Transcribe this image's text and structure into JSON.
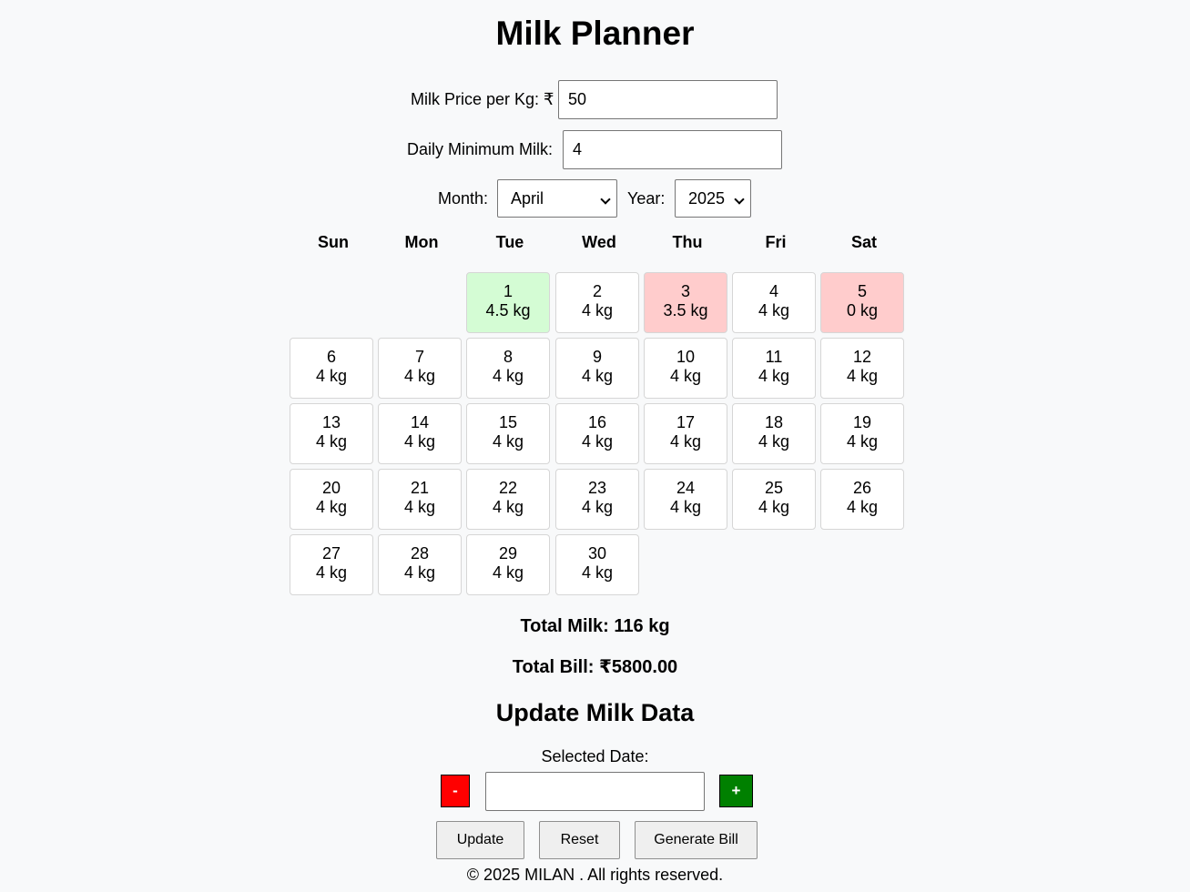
{
  "title": "Milk Planner",
  "price": {
    "label": "Milk Price per Kg: ₹",
    "value": "50"
  },
  "daily_min": {
    "label": "Daily Minimum Milk:",
    "value": "4"
  },
  "month": {
    "label": "Month:",
    "selected": "April"
  },
  "year": {
    "label": "Year:",
    "selected": "2025"
  },
  "calendar": {
    "weekdays": [
      "Sun",
      "Mon",
      "Tue",
      "Wed",
      "Thu",
      "Fri",
      "Sat"
    ],
    "first_weekday_index": 2,
    "days": [
      {
        "day": "1",
        "amount": "4.5 kg",
        "status": "above"
      },
      {
        "day": "2",
        "amount": "4 kg",
        "status": "normal"
      },
      {
        "day": "3",
        "amount": "3.5 kg",
        "status": "below"
      },
      {
        "day": "4",
        "amount": "4 kg",
        "status": "normal"
      },
      {
        "day": "5",
        "amount": "0 kg",
        "status": "below"
      },
      {
        "day": "6",
        "amount": "4 kg",
        "status": "normal"
      },
      {
        "day": "7",
        "amount": "4 kg",
        "status": "normal"
      },
      {
        "day": "8",
        "amount": "4 kg",
        "status": "normal"
      },
      {
        "day": "9",
        "amount": "4 kg",
        "status": "normal"
      },
      {
        "day": "10",
        "amount": "4 kg",
        "status": "normal"
      },
      {
        "day": "11",
        "amount": "4 kg",
        "status": "normal"
      },
      {
        "day": "12",
        "amount": "4 kg",
        "status": "normal"
      },
      {
        "day": "13",
        "amount": "4 kg",
        "status": "normal"
      },
      {
        "day": "14",
        "amount": "4 kg",
        "status": "normal"
      },
      {
        "day": "15",
        "amount": "4 kg",
        "status": "normal"
      },
      {
        "day": "16",
        "amount": "4 kg",
        "status": "normal"
      },
      {
        "day": "17",
        "amount": "4 kg",
        "status": "normal"
      },
      {
        "day": "18",
        "amount": "4 kg",
        "status": "normal"
      },
      {
        "day": "19",
        "amount": "4 kg",
        "status": "normal"
      },
      {
        "day": "20",
        "amount": "4 kg",
        "status": "normal"
      },
      {
        "day": "21",
        "amount": "4 kg",
        "status": "normal"
      },
      {
        "day": "22",
        "amount": "4 kg",
        "status": "normal"
      },
      {
        "day": "23",
        "amount": "4 kg",
        "status": "normal"
      },
      {
        "day": "24",
        "amount": "4 kg",
        "status": "normal"
      },
      {
        "day": "25",
        "amount": "4 kg",
        "status": "normal"
      },
      {
        "day": "26",
        "amount": "4 kg",
        "status": "normal"
      },
      {
        "day": "27",
        "amount": "4 kg",
        "status": "normal"
      },
      {
        "day": "28",
        "amount": "4 kg",
        "status": "normal"
      },
      {
        "day": "29",
        "amount": "4 kg",
        "status": "normal"
      },
      {
        "day": "30",
        "amount": "4 kg",
        "status": "normal"
      }
    ]
  },
  "totals": {
    "milk": "Total Milk: 116 kg",
    "bill": "Total Bill: ₹5800.00"
  },
  "update": {
    "heading": "Update Milk Data",
    "selected_date_label": "Selected Date:",
    "value": "",
    "minus_label": "-",
    "plus_label": "+"
  },
  "buttons": {
    "update": "Update",
    "reset": "Reset",
    "generate": "Generate Bill"
  },
  "footer": "© 2025 MILAN . All rights reserved.",
  "colors": {
    "above_min": "#d4fcd4",
    "below_min": "#ffcccc",
    "minus_button": "#ff0000",
    "plus_button": "#008000",
    "background": "#f8f9fa"
  }
}
